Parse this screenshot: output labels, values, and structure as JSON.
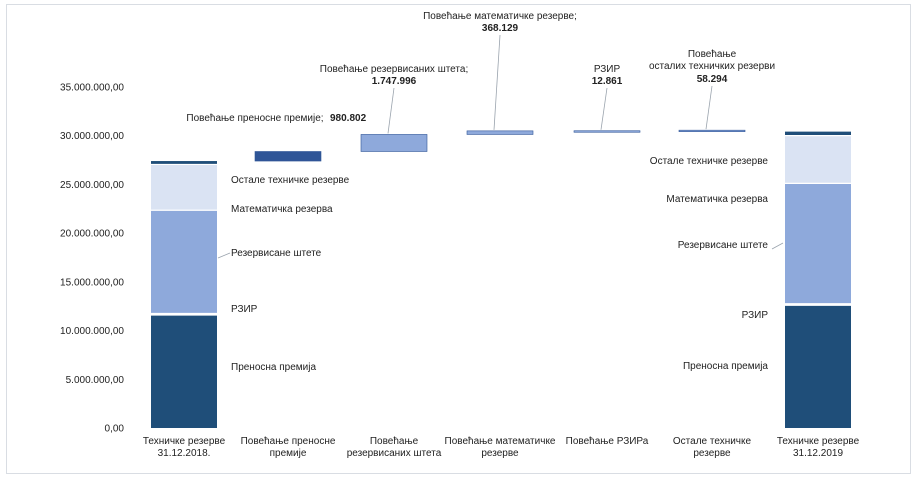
{
  "chart_data": {
    "type": "bar",
    "subtype": "waterfall-stacked",
    "ylim": [
      0,
      35000000
    ],
    "y_tick_step": 5000000,
    "y_tick_labels": [
      "0,00",
      "5.000.000,00",
      "10.000.000,00",
      "15.000.000,00",
      "20.000.000,00",
      "25.000.000,00",
      "30.000.000,00",
      "35.000.000,00"
    ],
    "grid": false,
    "categories": [
      [
        "Техничке резерве",
        "31.12.2018."
      ],
      [
        "Повећање преносне",
        "премије"
      ],
      [
        "Повећање",
        "резервисаних штета"
      ],
      [
        "Повећање математичке",
        "резерве"
      ],
      [
        "Повећање РЗИРа"
      ],
      [
        "Остале техничке",
        "резерве"
      ],
      [
        "Техничке резерве",
        "31.12.2019"
      ]
    ],
    "stack_components": [
      {
        "name": "Преносна премија",
        "color": "#1f4e79"
      },
      {
        "name": "РЗИР",
        "color": "#ffffff"
      },
      {
        "name": "Резервисане штете",
        "color": "#8ea9db"
      },
      {
        "name": "Математичка резерва",
        "color": "#dae3f3"
      },
      {
        "name": "Остале техничке резерве",
        "color": "#1f4e79"
      }
    ],
    "stacks": [
      {
        "category_index": 0,
        "values": [
          11600000,
          150000,
          10600000,
          4700000,
          350000
        ],
        "labels": [
          "Преносна премија",
          "РЗИР",
          "Резервисане штете",
          "Математичка резерва",
          "Остале техничке резерве"
        ]
      },
      {
        "category_index": 6,
        "values": [
          12600000,
          160000,
          12350000,
          4900000,
          410000
        ],
        "labels": [
          "Преносна премија",
          "РЗИР",
          "Резервисане штете",
          "Математичка резерва",
          "Остале техничке резерве"
        ]
      }
    ],
    "increments": [
      {
        "category_index": 1,
        "base": 27400000,
        "value": 980802,
        "color": "#2f5597",
        "label": [
          "Повећање преносне премије;",
          "980.802"
        ]
      },
      {
        "category_index": 2,
        "base": 28380802,
        "value": 1747996,
        "color": "#8ea9db",
        "label": [
          "Повећање резервисаних штета;",
          "1.747.996"
        ]
      },
      {
        "category_index": 3,
        "base": 30128798,
        "value": 368129,
        "color": "#8ea9db",
        "label": [
          "Повећање математичке резерве;",
          "368.129"
        ]
      },
      {
        "category_index": 4,
        "base": 30496927,
        "value": 12861,
        "color": "#8ea9db",
        "label": [
          "РЗИР",
          "12.861"
        ]
      },
      {
        "category_index": 5,
        "base": 30509788,
        "value": 58294,
        "color": "#8ea9db",
        "label": [
          "Повећање",
          "осталих техничких резерви",
          "58.294"
        ]
      }
    ]
  }
}
